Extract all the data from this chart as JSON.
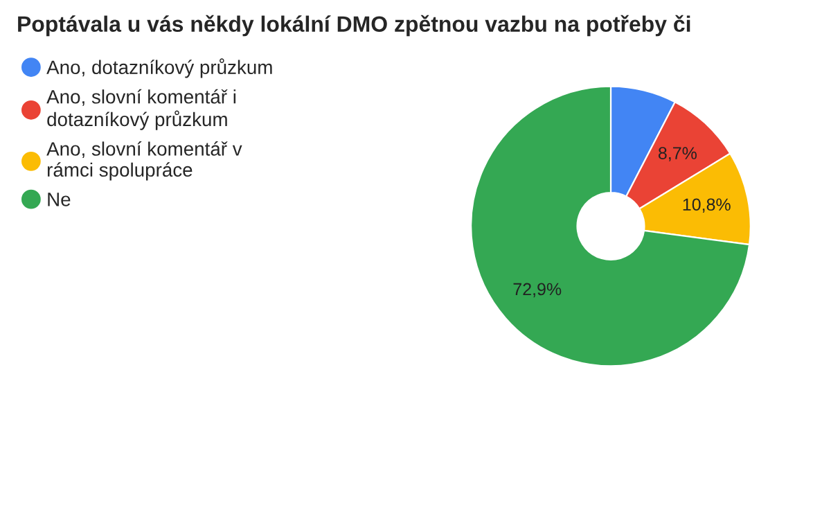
{
  "chart_data": {
    "type": "donut",
    "title": "Poptávala u vás někdy lokální DMO zpětnou vazbu na potřeby či",
    "categories": [
      "Ano, dotazníkový průzkum",
      "Ano, slovní komentář i dotazníkový průzkum",
      "Ano, slovní komentář v rámci spolupráce",
      "Ne"
    ],
    "values": [
      7.6,
      8.7,
      10.8,
      72.9
    ],
    "value_labels": [
      null,
      "8,7%",
      "10,8%",
      "72,9%"
    ],
    "colors": [
      "#4285f4",
      "#ea4335",
      "#fbbc04",
      "#34a853"
    ],
    "legend": "top left"
  }
}
